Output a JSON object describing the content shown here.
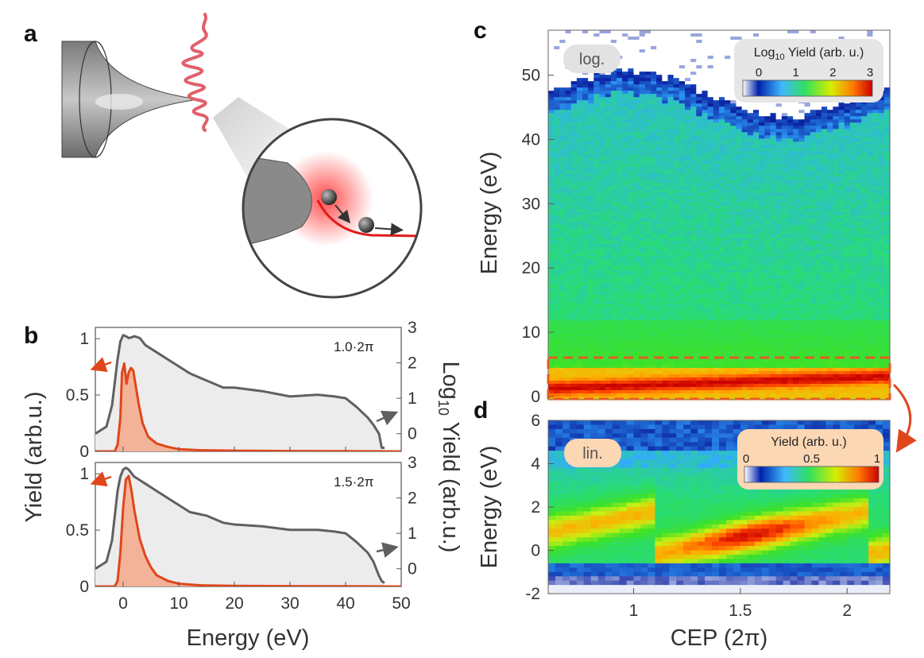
{
  "panels": {
    "a": "a",
    "b": "b",
    "c": "c",
    "d": "d"
  },
  "colors": {
    "gray_line": "#606060",
    "orange_line": "#e0461b",
    "orange_fill": "#f4a98a",
    "gray_fill": "#ececec",
    "pulse": "#e0606a",
    "dash_box": "#e65a2a",
    "log_badge": "#e2e2e2",
    "lin_badge": "#fbd7b4"
  },
  "schematic": {
    "icons": [
      "tip-icon",
      "laser-pulse-icon",
      "zoom-circle-icon",
      "electron-icon"
    ]
  },
  "chart_data": [
    {
      "id": "b-top",
      "type": "line",
      "annotation": "1.0·2π",
      "xlim": [
        -5,
        50
      ],
      "ylim_left": [
        0,
        1.1
      ],
      "ylim_right": [
        -0.5,
        3
      ],
      "xticks": [
        "0",
        "10",
        "20",
        "30",
        "40",
        "50"
      ],
      "yticks_left": [
        "0",
        "0.5",
        "1"
      ],
      "yticks_right": [
        "0",
        "1",
        "2",
        "3"
      ],
      "series": [
        {
          "name": "Log10 Yield (gray, right axis)",
          "axis": "right",
          "x": [
            -5,
            -3,
            -2,
            -1,
            -0.5,
            0,
            0.5,
            1,
            1.5,
            2,
            3,
            4,
            6,
            8,
            10,
            12,
            15,
            18,
            20,
            25,
            30,
            35,
            38,
            40,
            42,
            44,
            45,
            46,
            46.5,
            47
          ],
          "y": [
            0,
            0.2,
            0.8,
            2.1,
            2.6,
            2.78,
            2.75,
            2.7,
            2.72,
            2.75,
            2.7,
            2.5,
            2.3,
            2.1,
            1.9,
            1.7,
            1.5,
            1.3,
            1.3,
            1.2,
            1.05,
            1.1,
            1.05,
            1.0,
            0.75,
            0.45,
            0.25,
            0.0,
            -0.4,
            -0.4
          ]
        },
        {
          "name": "Yield (orange, left axis)",
          "axis": "left",
          "x": [
            -5,
            -1.5,
            -1,
            -0.5,
            -0.2,
            0.2,
            0.6,
            1,
            1.4,
            1.8,
            2.2,
            2.8,
            3.5,
            4.5,
            6,
            8,
            10,
            14,
            20,
            30,
            40,
            50
          ],
          "y": [
            0,
            0,
            0.06,
            0.3,
            0.7,
            0.78,
            0.6,
            0.7,
            0.74,
            0.72,
            0.6,
            0.42,
            0.25,
            0.13,
            0.07,
            0.04,
            0.02,
            0.01,
            0.006,
            0.003,
            0.002,
            0.0
          ]
        }
      ]
    },
    {
      "id": "b-bottom",
      "type": "line",
      "annotation": "1.5·2π",
      "xlim": [
        -5,
        50
      ],
      "ylim_left": [
        0,
        1.1
      ],
      "ylim_right": [
        -0.5,
        3
      ],
      "xticks": [
        "0",
        "10",
        "20",
        "30",
        "40",
        "50"
      ],
      "yticks_left": [
        "0",
        "0.5",
        "1"
      ],
      "yticks_right": [
        "0",
        "1",
        "2",
        "3"
      ],
      "xlabel": "Energy (eV)",
      "ylabel_left": "Yield (arb.u.)",
      "ylabel_right": "Log10 Yield (arb.u.)",
      "series": [
        {
          "name": "Log10 Yield (gray, right axis)",
          "axis": "right",
          "x": [
            -5,
            -3,
            -2,
            -1,
            -0.5,
            0,
            0.5,
            1,
            1.5,
            2,
            3,
            4,
            6,
            8,
            10,
            12,
            15,
            18,
            20,
            25,
            30,
            35,
            38,
            40,
            42,
            44,
            45,
            45.5,
            46,
            46.5,
            47
          ],
          "y": [
            0,
            0.2,
            0.8,
            2.2,
            2.6,
            2.8,
            2.85,
            2.8,
            2.7,
            2.6,
            2.5,
            2.4,
            2.2,
            2.0,
            1.8,
            1.6,
            1.5,
            1.3,
            1.25,
            1.2,
            1.1,
            1.1,
            1.05,
            1.0,
            0.75,
            0.45,
            0.2,
            0.0,
            -0.2,
            -0.35,
            -0.4
          ]
        },
        {
          "name": "Yield (orange, left axis)",
          "axis": "left",
          "x": [
            -5,
            -1.5,
            -1,
            -0.5,
            0,
            0.5,
            1,
            1.5,
            2,
            2.5,
            3,
            4,
            5,
            6,
            8,
            10,
            14,
            20,
            30,
            40,
            50
          ],
          "y": [
            0,
            0,
            0.05,
            0.3,
            0.7,
            0.95,
            0.98,
            0.85,
            0.68,
            0.55,
            0.42,
            0.27,
            0.17,
            0.1,
            0.05,
            0.025,
            0.01,
            0.005,
            0.003,
            0.002,
            0
          ]
        }
      ]
    },
    {
      "id": "c",
      "type": "heatmap",
      "mode_label": "log.",
      "colorbar_title": "Log10 Yield (arb. u.)",
      "colorbar_ticks": [
        "0",
        "1",
        "2",
        "3"
      ],
      "ylabel": "Energy (eV)",
      "ylim": [
        -0.5,
        57
      ],
      "yticks": [
        "0",
        "10",
        "20",
        "30",
        "40",
        "50"
      ],
      "xlim": [
        0.6,
        2.2
      ],
      "description_values": {
        "low_energy_band_eV": [
          0,
          4
        ],
        "cutoff_eV": [
          44,
          50
        ]
      }
    },
    {
      "id": "d",
      "type": "heatmap",
      "mode_label": "lin.",
      "colorbar_title": "Yield (arb. u.)",
      "colorbar_ticks": [
        "0",
        "0.5",
        "1"
      ],
      "xlabel": "CEP (2π)",
      "ylabel": "Energy (eV)",
      "ylim": [
        -2,
        6
      ],
      "xlim": [
        0.6,
        2.2
      ],
      "xticks": [
        "1",
        "1.5",
        "2"
      ],
      "yticks": [
        "-2",
        "0",
        "2",
        "4",
        "6"
      ]
    }
  ]
}
